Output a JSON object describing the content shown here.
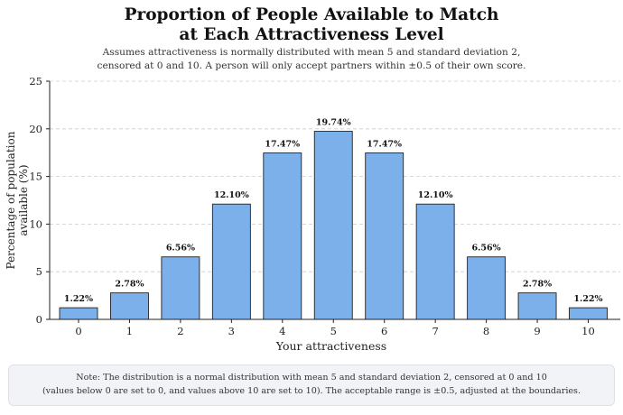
{
  "title_line1": "Proportion of People Available to Match",
  "title_line2": "at Each Attractiveness Level",
  "subtitle_line1": "Assumes attractiveness is normally distributed with mean 5 and standard deviation 2,",
  "subtitle_line2": "censored at 0 and 10. A person will only accept partners within ±0.5 of their own score.",
  "note_line1": "Note: The distribution is a normal distribution with mean 5 and standard deviation 2, censored at 0 and 10",
  "note_line2": "(values below 0 are set to 0, and values above 10 are set to 10). The acceptable range is ±0.5, adjusted at the boundaries.",
  "colors": {
    "bar_fill": "#7cb0ea",
    "bar_stroke": "#222222",
    "grid": "#cccccc",
    "note_bg": "#f1f3f6"
  },
  "chart_data": {
    "type": "bar",
    "categories": [
      "0",
      "1",
      "2",
      "3",
      "4",
      "5",
      "6",
      "7",
      "8",
      "9",
      "10"
    ],
    "values": [
      1.22,
      2.78,
      6.56,
      12.1,
      17.47,
      19.74,
      17.47,
      12.1,
      6.56,
      2.78,
      1.22
    ],
    "data_labels": [
      "1.22%",
      "2.78%",
      "6.56%",
      "12.10%",
      "17.47%",
      "19.74%",
      "17.47%",
      "12.10%",
      "6.56%",
      "2.78%",
      "1.22%"
    ],
    "xlabel": "Your attractiveness",
    "ylabel_line1": "Percentage of population",
    "ylabel_line2": "available (%)",
    "ylim": [
      0,
      25
    ],
    "yticks": [
      0,
      5,
      10,
      15,
      20,
      25
    ],
    "grid": "horizontal dashed"
  }
}
